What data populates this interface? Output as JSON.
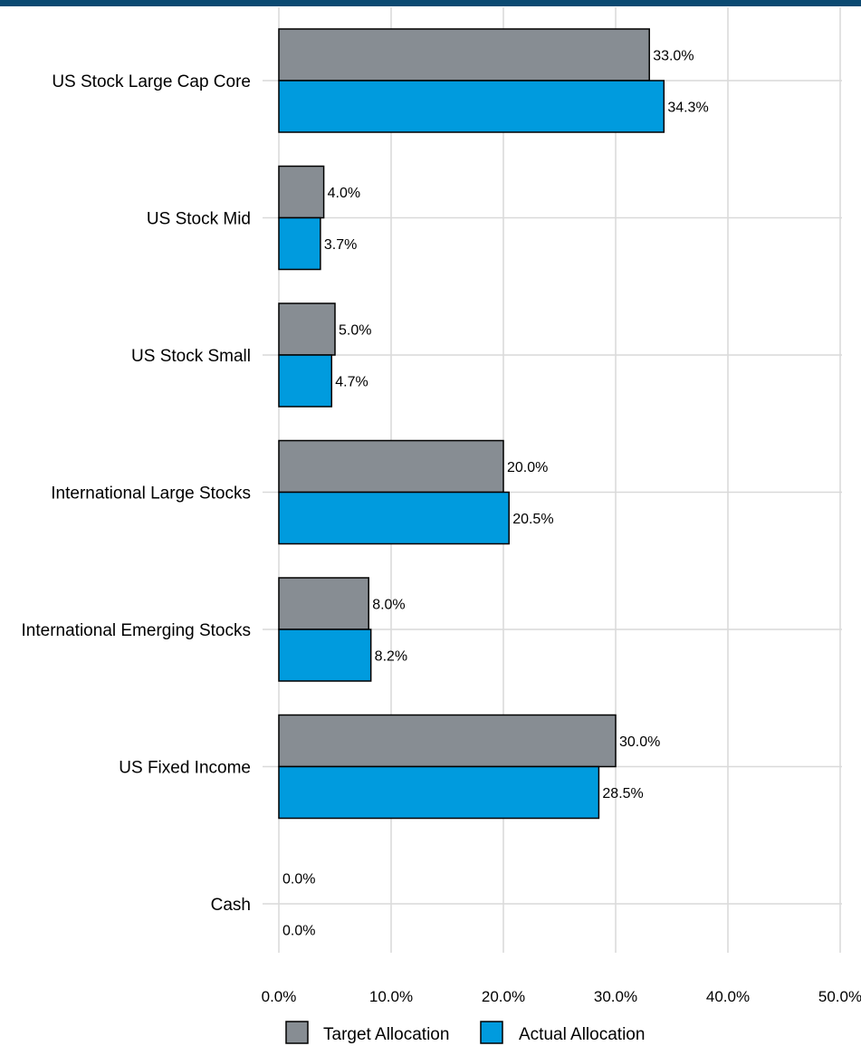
{
  "colors": {
    "header_bar": "#0b4a72",
    "target": "#878d93",
    "actual": "#009bde",
    "grid": "#d9d9d9"
  },
  "chart_data": {
    "type": "bar",
    "orientation": "horizontal",
    "categories": [
      "US Stock Large Cap Core",
      "US Stock Mid",
      "US Stock Small",
      "International Large Stocks",
      "International Emerging Stocks",
      "US Fixed Income",
      "Cash"
    ],
    "series": [
      {
        "name": "Target Allocation",
        "values": [
          33.0,
          4.0,
          5.0,
          20.0,
          8.0,
          30.0,
          0.0
        ]
      },
      {
        "name": "Actual Allocation",
        "values": [
          34.3,
          3.7,
          4.7,
          20.5,
          8.2,
          28.5,
          0.0
        ]
      }
    ],
    "value_labels": [
      [
        "33.0%",
        "4.0%",
        "5.0%",
        "20.0%",
        "8.0%",
        "30.0%",
        "0.0%"
      ],
      [
        "34.3%",
        "3.7%",
        "4.7%",
        "20.5%",
        "8.2%",
        "28.5%",
        "0.0%"
      ]
    ],
    "xlim": [
      0,
      50
    ],
    "x_ticks": [
      "0.0%",
      "10.0%",
      "20.0%",
      "30.0%",
      "40.0%",
      "50.0%"
    ],
    "grid": true,
    "legend_position": "bottom",
    "title": "",
    "xlabel": "",
    "ylabel": ""
  }
}
